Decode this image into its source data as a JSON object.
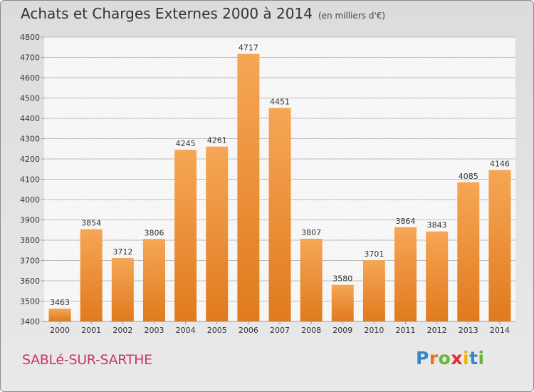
{
  "header": {
    "title": "Achats et Charges Externes 2000 à 2014",
    "subtitle": "(en milliers d'€)"
  },
  "footer": {
    "city": "SABLé-SUR-SARTHE",
    "brand": "Proxiti"
  },
  "colors": {
    "bar_top": "#f6a655",
    "bar_bottom": "#e07a1e",
    "city": "#c8366a",
    "brand_letters": [
      "#3a86c8",
      "#e8731a",
      "#6cb33e",
      "#e02d2d",
      "#f0b400",
      "#3a86c8",
      "#6cb33e"
    ]
  },
  "chart_data": {
    "type": "bar",
    "title": "Achats et Charges Externes 2000 à 2014",
    "subtitle": "(en milliers d'€)",
    "xlabel": "",
    "ylabel": "",
    "categories": [
      "2000",
      "2001",
      "2002",
      "2003",
      "2004",
      "2005",
      "2006",
      "2007",
      "2008",
      "2009",
      "2010",
      "2011",
      "2012",
      "2013",
      "2014"
    ],
    "values": [
      3463,
      3854,
      3712,
      3806,
      4245,
      4261,
      4717,
      4451,
      3807,
      3580,
      3701,
      3864,
      3843,
      4085,
      4146
    ],
    "ylim": [
      3400,
      4800
    ],
    "yticks": [
      3400,
      3500,
      3600,
      3700,
      3800,
      3900,
      4000,
      4100,
      4200,
      4300,
      4400,
      4500,
      4600,
      4700,
      4800
    ],
    "grid": true,
    "legend": "none"
  }
}
